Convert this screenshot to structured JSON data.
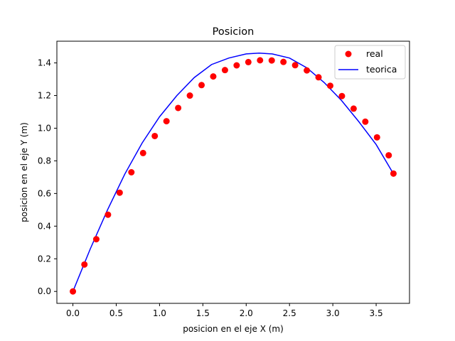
{
  "chart_data": {
    "type": "scatter",
    "title": "Posicion",
    "xlabel": "posicion en el eje X (m)",
    "ylabel": "posicion en el eje Y (m)",
    "xlim": [
      -0.185,
      3.885
    ],
    "ylim": [
      -0.073,
      1.533
    ],
    "xticks": [
      0.0,
      0.5,
      1.0,
      1.5,
      2.0,
      2.5,
      3.0,
      3.5
    ],
    "xtick_labels": [
      "0.0",
      "0.5",
      "1.0",
      "1.5",
      "2.0",
      "2.5",
      "3.0",
      "3.5"
    ],
    "yticks": [
      0.0,
      0.2,
      0.4,
      0.6,
      0.8,
      1.0,
      1.2,
      1.4
    ],
    "ytick_labels": [
      "0.0",
      "0.2",
      "0.4",
      "0.6",
      "0.8",
      "1.0",
      "1.2",
      "1.4"
    ],
    "grid": false,
    "legend_position": "top-right",
    "series": [
      {
        "name": "real",
        "kind": "scatter",
        "color": "#ff0000",
        "x": [
          0.0,
          0.133,
          0.27,
          0.405,
          0.54,
          0.675,
          0.81,
          0.945,
          1.08,
          1.215,
          1.35,
          1.485,
          1.62,
          1.755,
          1.89,
          2.025,
          2.16,
          2.295,
          2.43,
          2.565,
          2.7,
          2.835,
          2.97,
          3.105,
          3.24,
          3.375,
          3.51,
          3.645,
          3.7
        ],
        "y": [
          0.0,
          0.165,
          0.32,
          0.47,
          0.605,
          0.73,
          0.848,
          0.952,
          1.043,
          1.124,
          1.2,
          1.264,
          1.317,
          1.356,
          1.385,
          1.405,
          1.416,
          1.415,
          1.406,
          1.386,
          1.354,
          1.312,
          1.26,
          1.197,
          1.12,
          1.04,
          0.944,
          0.834,
          0.722
        ]
      },
      {
        "name": "teorica",
        "kind": "line",
        "color": "#0000ff",
        "x": [
          0.0,
          0.2,
          0.4,
          0.6,
          0.8,
          1.0,
          1.2,
          1.4,
          1.6,
          1.8,
          2.0,
          2.15,
          2.3,
          2.5,
          2.7,
          2.9,
          3.1,
          3.3,
          3.5,
          3.7
        ],
        "y": [
          0.0,
          0.26,
          0.5,
          0.72,
          0.91,
          1.07,
          1.2,
          1.31,
          1.39,
          1.43,
          1.455,
          1.46,
          1.455,
          1.43,
          1.37,
          1.28,
          1.17,
          1.04,
          0.9,
          0.72
        ]
      }
    ]
  }
}
